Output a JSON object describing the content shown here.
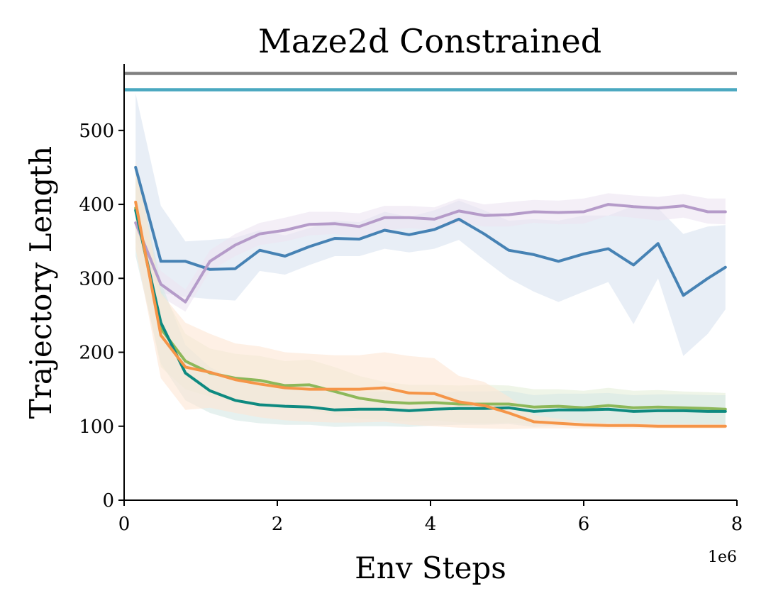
{
  "chart_data": {
    "type": "line",
    "title": "Maze2d Constrained",
    "xlabel": "Env Steps",
    "ylabel": "Trajectory Length",
    "x_offset_label": "1e6",
    "xlim": [
      0,
      8
    ],
    "ylim": [
      0,
      590
    ],
    "x_ticks": [
      0,
      2,
      4,
      6,
      8
    ],
    "y_ticks": [
      0,
      100,
      200,
      300,
      400,
      500
    ],
    "grid": false,
    "reference_lines": [
      {
        "y": 577,
        "color": "#808080"
      },
      {
        "y": 555,
        "color": "#4aa8c0"
      }
    ],
    "x": [
      0.15,
      0.48,
      0.8,
      1.12,
      1.45,
      1.77,
      2.1,
      2.42,
      2.75,
      3.07,
      3.4,
      3.72,
      4.05,
      4.37,
      4.7,
      5.02,
      5.35,
      5.67,
      6.0,
      6.32,
      6.65,
      6.97,
      7.3,
      7.62,
      7.85
    ],
    "series": [
      {
        "color": "#4682b4",
        "band_color": "#d8e2f0",
        "values": [
          450,
          323,
          323,
          312,
          313,
          338,
          330,
          343,
          354,
          353,
          365,
          359,
          366,
          380,
          360,
          338,
          332,
          323,
          333,
          340,
          318,
          347,
          277,
          300,
          315
        ],
        "lower": [
          360,
          280,
          275,
          272,
          270,
          310,
          305,
          318,
          330,
          330,
          340,
          335,
          340,
          352,
          325,
          300,
          282,
          268,
          282,
          295,
          238,
          300,
          195,
          225,
          258
        ],
        "upper": [
          550,
          398,
          350,
          352,
          355,
          365,
          358,
          368,
          378,
          376,
          390,
          383,
          392,
          405,
          392,
          378,
          380,
          378,
          385,
          385,
          398,
          395,
          360,
          370,
          372
        ]
      },
      {
        "color": "#b59bc9",
        "band_color": "#ece4f2",
        "values": [
          375,
          292,
          268,
          323,
          345,
          360,
          365,
          373,
          374,
          370,
          382,
          382,
          380,
          391,
          385,
          386,
          390,
          389,
          390,
          400,
          397,
          395,
          398,
          390,
          390
        ],
        "lower": [
          350,
          275,
          255,
          310,
          330,
          345,
          350,
          358,
          360,
          355,
          365,
          368,
          365,
          375,
          370,
          370,
          375,
          373,
          374,
          385,
          382,
          378,
          382,
          374,
          373
        ],
        "upper": [
          400,
          310,
          285,
          338,
          360,
          375,
          382,
          390,
          390,
          388,
          398,
          398,
          396,
          408,
          400,
          403,
          406,
          405,
          408,
          415,
          412,
          410,
          414,
          408,
          408
        ]
      },
      {
        "color": "#8db85a",
        "band_color": "#e4eed8",
        "values": [
          395,
          232,
          188,
          172,
          165,
          162,
          155,
          156,
          147,
          138,
          133,
          131,
          132,
          130,
          130,
          130,
          126,
          127,
          125,
          128,
          125,
          126,
          125,
          124,
          123
        ],
        "lower": [
          340,
          180,
          150,
          140,
          132,
          128,
          122,
          122,
          115,
          110,
          108,
          106,
          108,
          105,
          104,
          105,
          103,
          104,
          102,
          105,
          102,
          103,
          103,
          102,
          101
        ],
        "upper": [
          450,
          285,
          225,
          205,
          198,
          195,
          188,
          190,
          180,
          168,
          160,
          156,
          156,
          155,
          156,
          155,
          150,
          150,
          148,
          152,
          148,
          149,
          147,
          146,
          145
        ]
      },
      {
        "color": "#0e8a80",
        "band_color": "#d6e8e4",
        "values": [
          392,
          240,
          172,
          148,
          135,
          129,
          127,
          126,
          122,
          123,
          123,
          121,
          123,
          124,
          124,
          125,
          120,
          122,
          122,
          123,
          120,
          121,
          121,
          120,
          120
        ],
        "lower": [
          330,
          185,
          135,
          118,
          108,
          104,
          102,
          102,
          99,
          100,
          100,
          99,
          101,
          102,
          102,
          103,
          99,
          101,
          101,
          102,
          99,
          100,
          100,
          99,
          99
        ],
        "upper": [
          455,
          295,
          210,
          180,
          162,
          155,
          152,
          150,
          146,
          147,
          147,
          144,
          146,
          147,
          147,
          148,
          142,
          144,
          144,
          145,
          142,
          143,
          143,
          142,
          142
        ]
      },
      {
        "color": "#f59548",
        "band_color": "#fde6d4",
        "values": [
          403,
          223,
          180,
          173,
          163,
          157,
          152,
          150,
          150,
          150,
          152,
          145,
          144,
          133,
          128,
          118,
          106,
          104,
          102,
          101,
          101,
          100,
          100,
          100,
          100
        ],
        "lower": [
          340,
          165,
          122,
          125,
          118,
          112,
          108,
          106,
          105,
          105,
          106,
          102,
          100,
          98,
          97,
          96,
          97,
          97,
          97,
          97,
          97,
          97,
          97,
          97,
          97
        ],
        "upper": [
          460,
          280,
          240,
          225,
          212,
          208,
          200,
          198,
          196,
          196,
          200,
          195,
          192,
          168,
          160,
          140,
          115,
          110,
          106,
          104,
          104,
          103,
          103,
          103,
          103
        ]
      }
    ]
  }
}
